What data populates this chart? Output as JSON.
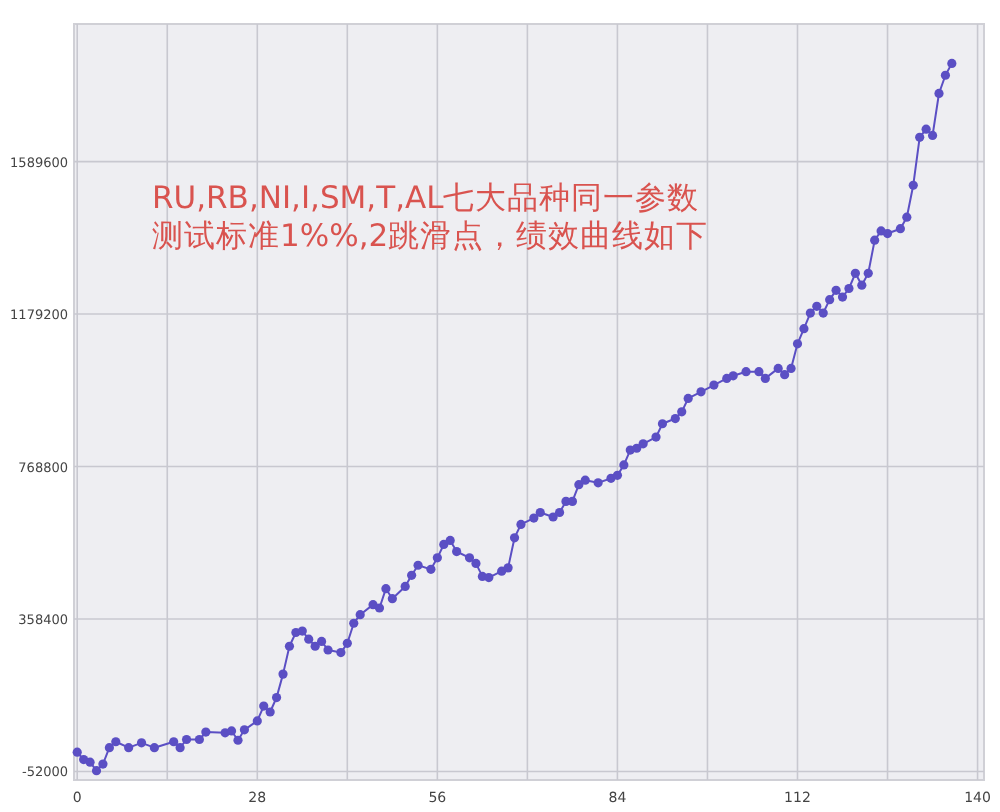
{
  "chart_data": {
    "type": "line",
    "annotations": [
      "RU,RB,NI,I,SM,T,AL七大品种同一参数",
      "测试标准1%%,2跳滑点，绩效曲线如下"
    ],
    "x": [
      0,
      1,
      2,
      3,
      4,
      5,
      6,
      8,
      10,
      12,
      15,
      16,
      17,
      19,
      20,
      23,
      24,
      25,
      26,
      28,
      29,
      30,
      31,
      32,
      33,
      34,
      35,
      36,
      37,
      38,
      39,
      41,
      42,
      43,
      44,
      46,
      47,
      48,
      49,
      51,
      52,
      53,
      55,
      56,
      57,
      58,
      59,
      61,
      62,
      63,
      64,
      66,
      67,
      68,
      69,
      71,
      72,
      74,
      75,
      76,
      77,
      78,
      79,
      81,
      83,
      84,
      85,
      86,
      87,
      88,
      90,
      91,
      93,
      94,
      95,
      97,
      99,
      101,
      102,
      104,
      106,
      107,
      109,
      110,
      111,
      112,
      113,
      114,
      115,
      116,
      117,
      118,
      119,
      120,
      121,
      122,
      123,
      124,
      125,
      126,
      128,
      129,
      130,
      131,
      132,
      133,
      134,
      135,
      136
    ],
    "series": [
      {
        "color": "#5b4fc4",
        "values": [
          0,
          -20000,
          -27000,
          -50000,
          -32000,
          12000,
          28000,
          12000,
          25000,
          12000,
          28000,
          12000,
          34000,
          34000,
          54000,
          52000,
          57000,
          32000,
          60000,
          84000,
          124000,
          108000,
          147000,
          210000,
          285000,
          322000,
          326000,
          304000,
          285000,
          298000,
          275000,
          268000,
          293000,
          347000,
          370000,
          397000,
          388000,
          440000,
          413000,
          446000,
          476000,
          503000,
          492000,
          523000,
          559000,
          570000,
          540000,
          523000,
          508000,
          473000,
          470000,
          487000,
          496000,
          577000,
          613000,
          630000,
          645000,
          633000,
          645000,
          675000,
          675000,
          720000,
          732000,
          725000,
          737000,
          745000,
          773000,
          813000,
          818000,
          830000,
          848000,
          884000,
          898000,
          916000,
          952000,
          970000,
          988000,
          1006000,
          1013000,
          1024000,
          1024000,
          1006000,
          1033000,
          1016000,
          1033000,
          1099000,
          1140000,
          1182000,
          1200000,
          1182000,
          1218000,
          1243000,
          1225000,
          1248000,
          1289000,
          1257000,
          1289000,
          1378000,
          1403000,
          1396000,
          1409000,
          1440000,
          1526000,
          1655000,
          1677000,
          1660000,
          1773000,
          1822000,
          1854000
        ]
      }
    ],
    "xlim": [
      -0.5,
      141
    ],
    "ylim": [
      -75000,
      1960000
    ],
    "xticks": [
      0,
      {
        "value": 14,
        "label": null
      },
      28,
      {
        "value": 42,
        "label": null
      },
      56,
      {
        "value": 70,
        "label": null
      },
      84,
      {
        "value": 98,
        "label": null
      },
      112,
      {
        "value": 126,
        "label": null
      },
      140
    ],
    "yticks": [
      -52000,
      358400,
      768800,
      1179200,
      1589600
    ],
    "grid": true,
    "marker": "circle",
    "line_style": "solid"
  }
}
